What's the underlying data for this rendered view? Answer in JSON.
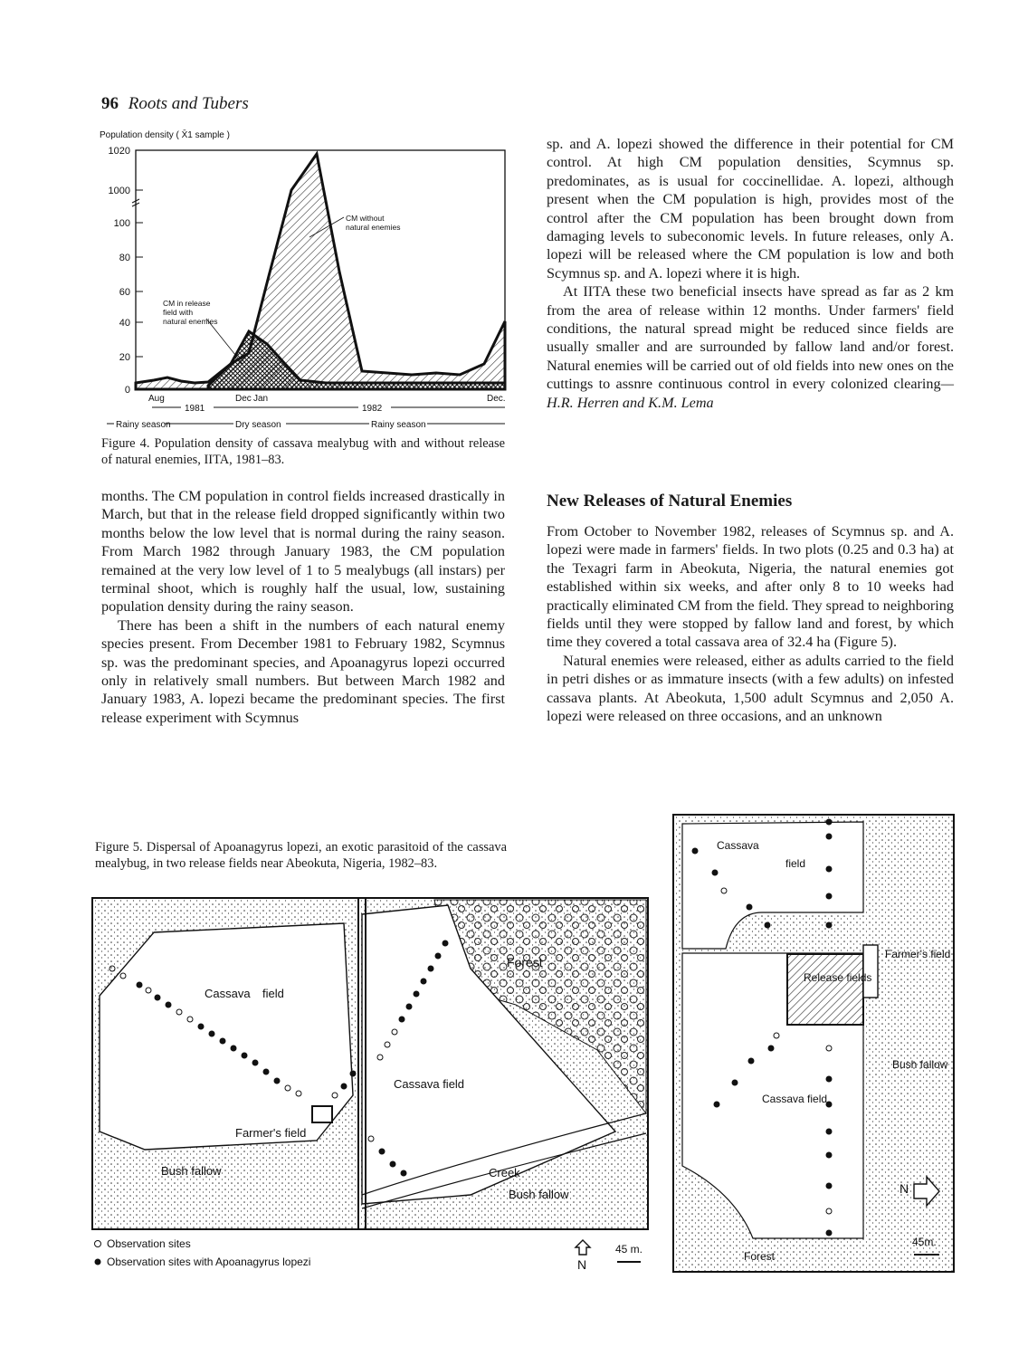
{
  "header": {
    "page_number": "96",
    "running_title": "Roots and Tubers"
  },
  "figure4": {
    "y_axis_label": "Population density ( X̄1 sample )",
    "y_ticks": [
      "1020",
      "1000",
      "100",
      "80",
      "60",
      "40",
      "20",
      "0"
    ],
    "month_labels": [
      "Aug",
      "Dec",
      "Jan",
      "Dec."
    ],
    "year_labels": [
      "1981",
      "1982"
    ],
    "season_labels": [
      "Rainy season",
      "Dry season",
      "Rainy season"
    ],
    "annotation_without": [
      "CM without",
      "natural enemies"
    ],
    "annotation_with": [
      "CM in release",
      "field with",
      "natural enemies"
    ],
    "caption": "Figure 4. Population density of cassava mealybug with and without release of natural enemies, IITA, 1981–83."
  },
  "left_column": [
    "months. The CM population in control fields increased drastically in March, but that in the release field dropped significantly within two months below the low level that is normal during the rainy season. From March 1982 through January 1983, the CM population remained at the very low level of 1 to 5 mealybugs (all instars) per terminal shoot, which is roughly half the usual, low, sustaining population density during the rainy season.",
    "There has been a shift in the numbers of each natural enemy species present. From December 1981 to February 1982, Scymnus sp. was the predominant species, and Apoanagyrus lopezi occurred only in relatively small numbers. But between March 1982 and January 1983, A. lopezi became the predominant species. The first release experiment with Scymnus"
  ],
  "right_column": {
    "p1": "sp. and A. lopezi showed the difference in their potential for CM control. At high CM population densities, Scymnus sp. predominates, as is usual for coccinellidae. A. lopezi, although present when the CM population is high, provides most of the control after the CM population has been brought down from damaging levels to subeconomic levels. In future releases, only A. lopezi will be released where the CM population is low and both Scymnus sp. and A. lopezi where it is high.",
    "p2": "At IITA these two beneficial insects have spread as far as 2 km from the area of release within 12 months. Under farmers' field conditions, the natural spread might be reduced since fields are usually smaller and are surrounded by fallow land and/or forest. Natural enemies will be carried out of old fields into new ones on the cuttings to assnre continuous control in every colonized clearing",
    "p2_authors": "—H.R. Herren and K.M. Lema",
    "heading": "New Releases of Natural Enemies",
    "p3": "From October to November 1982, releases of Scymnus sp. and A. lopezi were made in farmers' fields. In two plots (0.25 and 0.3 ha) at the Texagri farm in Abeokuta, Nigeria, the natural enemies got established within six weeks, and after only 8 to 10 weeks had practically eliminated CM from the field. They spread to neighboring fields until they were stopped by fallow land and forest, by which time they covered a total cassava area of 32.4 ha (Figure 5).",
    "p4": "Natural enemies were released, either as adults carried to the field in petri dishes or as immature insects (with a few adults) on infested cassava plants. At Abeokuta, 1,500 adult Scymnus and 2,050 A. lopezi were released on three occasions, and an unknown"
  },
  "figure5": {
    "caption": "Figure 5. Dispersal of Apoanagyrus lopezi, an exotic parasitoid of the cassava mealybug, in two release fields near Abeokuta, Nigeria, 1982–83.",
    "map_left_labels": [
      "Cassava",
      "field",
      "Forest",
      "Cassava field",
      "Farmer's field",
      "Bush fallow",
      "Creek",
      "Bush fallow"
    ],
    "legend_open": "Observation sites",
    "legend_filled": "Observation sites with Apoanagyrus lopezi",
    "north": "N",
    "scale": "45 m.",
    "map_right_labels": [
      "Cassava",
      "field",
      "Farmer's field",
      "Release fields",
      "Bush fallow",
      "Cassava field",
      "Forest",
      "N",
      "45m."
    ]
  }
}
